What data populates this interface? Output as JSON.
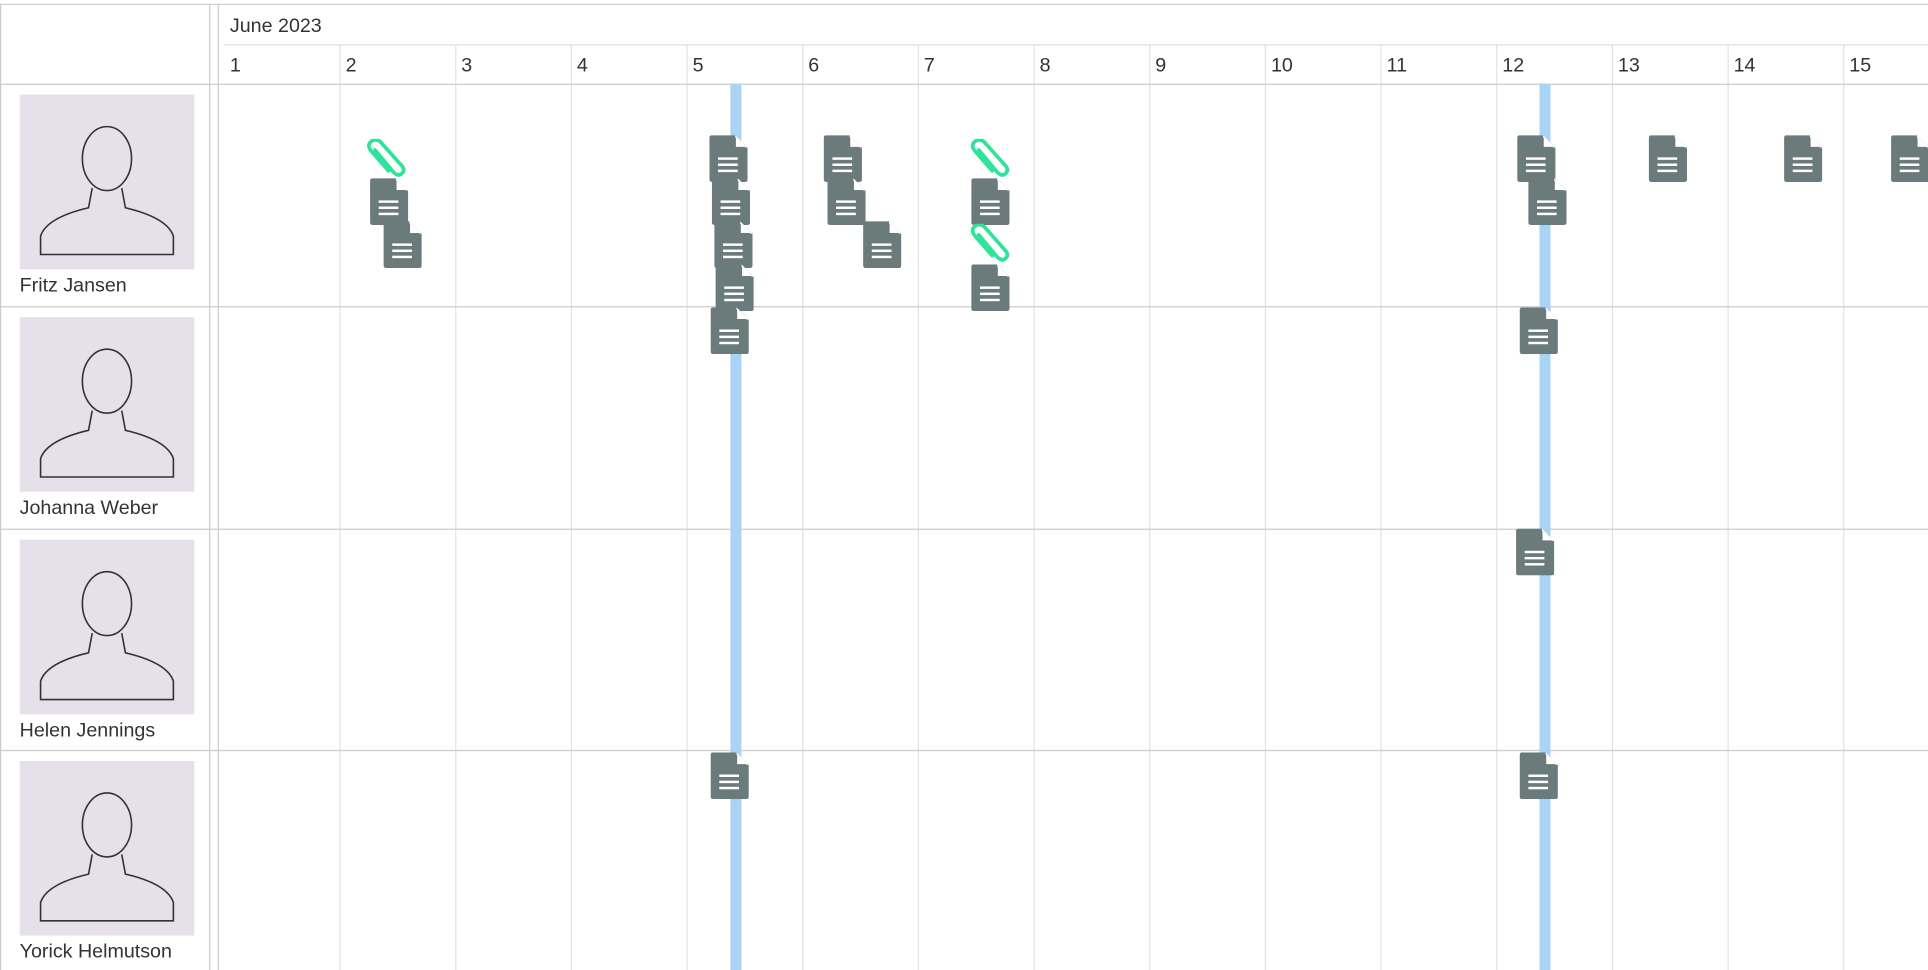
{
  "header": {
    "month": "June 2023",
    "days": [
      "1",
      "2",
      "3",
      "4",
      "5",
      "6",
      "7",
      "8",
      "9",
      "10",
      "11",
      "12",
      "13",
      "14",
      "15"
    ]
  },
  "people": [
    {
      "name": "Fritz Jansen"
    },
    {
      "name": "Johanna Weber"
    },
    {
      "name": "Helen Jennings"
    },
    {
      "name": "Yorick Helmutson"
    }
  ]
}
